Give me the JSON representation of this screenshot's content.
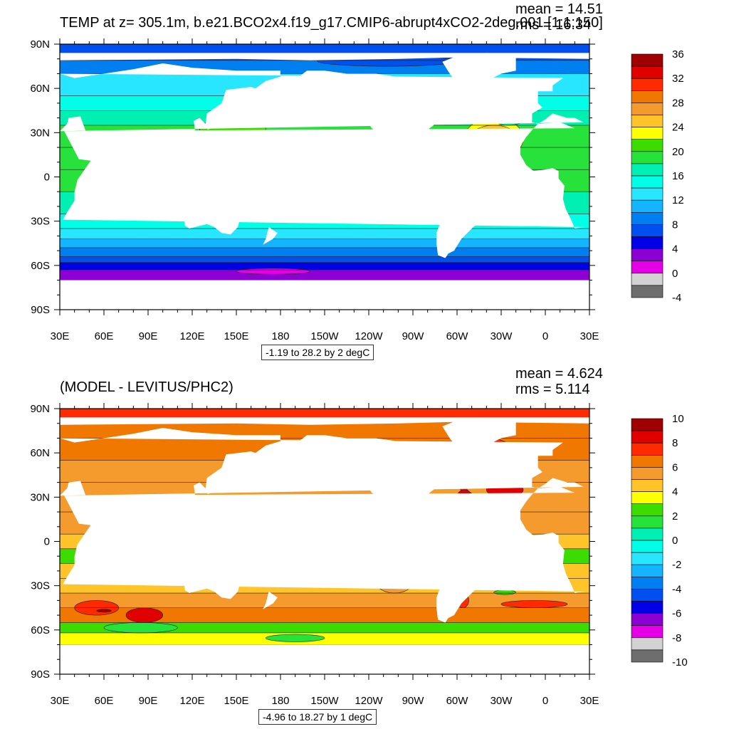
{
  "panels": [
    {
      "title": "TEMP at z= 305.1m, b.e21.BCO2x4.f19_g17.CMIP6-abrupt4xCO2-2deg.001 [1:1:150]",
      "stats": {
        "mean": "mean = 14.51",
        "rms": "rms = 16.34"
      },
      "range_label": "-1.19 to 28.2 by 2 degC",
      "colorbar": {
        "labels": [
          "36",
          "32",
          "28",
          "24",
          "20",
          "16",
          "12",
          "8",
          "4",
          "0",
          "-4"
        ],
        "colors": [
          "#a00000",
          "#e00000",
          "#ff2a00",
          "#f07800",
          "#f59a2c",
          "#ffc42a",
          "#ffff00",
          "#3cdc00",
          "#28e23c",
          "#00f0b4",
          "#00ffe6",
          "#28e6ff",
          "#14b4ff",
          "#0080f0",
          "#0050f0",
          "#0000e6",
          "#8c00d2",
          "#e600e6",
          "#d2d2d2",
          "#6e6e6e"
        ],
        "palette": [
          "#6e6e6e",
          "#d2d2d2",
          "#e600e6",
          "#8c00d2",
          "#0000e6",
          "#0050f0",
          "#0080f0",
          "#14b4ff",
          "#28e6ff",
          "#00ffe6",
          "#00f0b4",
          "#28e23c",
          "#3cdc00",
          "#ffff00",
          "#ffc42a",
          "#f59a2c",
          "#f07800",
          "#ff2a00",
          "#e00000",
          "#a00000"
        ]
      }
    },
    {
      "title": "(MODEL - LEVITUS/PHC2)",
      "stats": {
        "mean": "mean = 4.624",
        "rms": "rms = 5.114"
      },
      "range_label": "-4.96 to 18.27 by 1 degC",
      "colorbar": {
        "labels": [
          "10",
          "8",
          "6",
          "4",
          "2",
          "0",
          "-2",
          "-4",
          "-6",
          "-8",
          "-10"
        ],
        "colors": [
          "#a00000",
          "#e00000",
          "#ff2a00",
          "#f07800",
          "#f59a2c",
          "#ffc42a",
          "#ffff00",
          "#3cdc00",
          "#28e23c",
          "#00f0b4",
          "#00ffe6",
          "#28e6ff",
          "#14b4ff",
          "#0080f0",
          "#0050f0",
          "#0000e6",
          "#8c00d2",
          "#e600e6",
          "#d2d2d2",
          "#6e6e6e"
        ],
        "palette": [
          "#6e6e6e",
          "#d2d2d2",
          "#e600e6",
          "#8c00d2",
          "#0000e6",
          "#0050f0",
          "#0080f0",
          "#14b4ff",
          "#28e6ff",
          "#00ffe6",
          "#00f0b4",
          "#28e23c",
          "#3cdc00",
          "#ffff00",
          "#ffc42a",
          "#f59a2c",
          "#f07800",
          "#ff2a00",
          "#e00000",
          "#a00000"
        ]
      }
    }
  ],
  "axes": {
    "lat_labels": [
      "90N",
      "60N",
      "30N",
      "0",
      "30S",
      "60S",
      "90S"
    ],
    "lon_labels": [
      "30E",
      "60E",
      "90E",
      "120E",
      "150E",
      "180",
      "150W",
      "120W",
      "90W",
      "60W",
      "30W",
      "0",
      "30E"
    ]
  }
}
